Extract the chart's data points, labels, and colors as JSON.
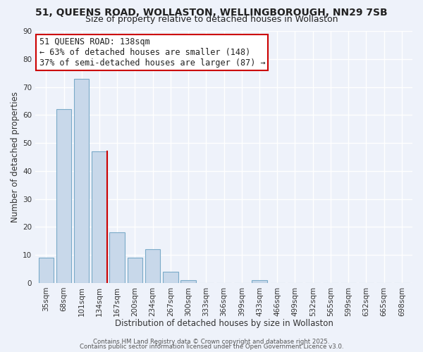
{
  "title": "51, QUEENS ROAD, WOLLASTON, WELLINGBOROUGH, NN29 7SB",
  "subtitle": "Size of property relative to detached houses in Wollaston",
  "xlabel": "Distribution of detached houses by size in Wollaston",
  "ylabel": "Number of detached properties",
  "bar_labels": [
    "35sqm",
    "68sqm",
    "101sqm",
    "134sqm",
    "167sqm",
    "200sqm",
    "234sqm",
    "267sqm",
    "300sqm",
    "333sqm",
    "366sqm",
    "399sqm",
    "433sqm",
    "466sqm",
    "499sqm",
    "532sqm",
    "565sqm",
    "599sqm",
    "632sqm",
    "665sqm",
    "698sqm"
  ],
  "bar_values": [
    9,
    62,
    73,
    47,
    18,
    9,
    12,
    4,
    1,
    0,
    0,
    0,
    1,
    0,
    0,
    0,
    0,
    0,
    0,
    0,
    0
  ],
  "bar_color": "#c8d8ea",
  "bar_edge_color": "#7aaac8",
  "ylim": [
    0,
    90
  ],
  "yticks": [
    0,
    10,
    20,
    30,
    40,
    50,
    60,
    70,
    80,
    90
  ],
  "annotation_box_text": "51 QUEENS ROAD: 138sqm\n← 63% of detached houses are smaller (148)\n37% of semi-detached houses are larger (87) →",
  "highlight_bar_index": 3,
  "highlight_bar_edge_color": "#cc0000",
  "background_color": "#eef2fa",
  "grid_color": "#ffffff",
  "footer_line1": "Contains HM Land Registry data © Crown copyright and database right 2025.",
  "footer_line2": "Contains public sector information licensed under the Open Government Licence v3.0.",
  "title_fontsize": 10,
  "subtitle_fontsize": 9,
  "axis_label_fontsize": 8.5,
  "tick_fontsize": 7.5,
  "annotation_fontsize": 8.5
}
